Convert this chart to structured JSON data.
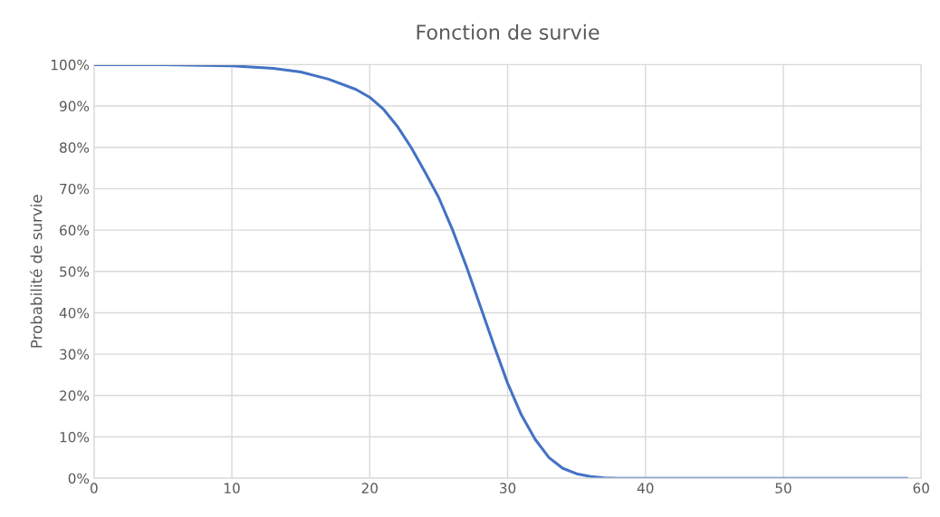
{
  "chart_data": {
    "type": "line",
    "title": "Fonction de survie",
    "ylabel": "Probabilité de survie",
    "x": [
      0,
      5,
      10,
      13,
      15,
      17,
      19,
      20,
      21,
      22,
      23,
      24,
      25,
      26,
      27,
      28,
      29,
      30,
      31,
      32,
      33,
      34,
      35,
      36,
      37,
      38,
      40,
      50,
      59
    ],
    "series": [
      {
        "color": "#4472c4",
        "values": [
          100,
          100,
          99.7,
          99.1,
          98.2,
          96.5,
          94,
          92.1,
          89.2,
          85.1,
          80,
          74.1,
          67.9,
          60.1,
          51.3,
          41.8,
          32.2,
          23,
          15.3,
          9.4,
          5,
          2.4,
          1.1,
          0.4,
          0.1,
          0,
          0,
          0,
          0
        ]
      }
    ],
    "xlim": [
      0,
      60
    ],
    "xticks": [
      0,
      10,
      20,
      30,
      40,
      50,
      60
    ],
    "ylim": [
      0,
      100
    ],
    "yticks": [
      {
        "value": 0,
        "label": "0%"
      },
      {
        "value": 10,
        "label": "10%"
      },
      {
        "value": 20,
        "label": "20%"
      },
      {
        "value": 30,
        "label": "30%"
      },
      {
        "value": 40,
        "label": "40%"
      },
      {
        "value": 50,
        "label": "50%"
      },
      {
        "value": 60,
        "label": "60%"
      },
      {
        "value": 70,
        "label": "70%"
      },
      {
        "value": 80,
        "label": "80%"
      },
      {
        "value": 90,
        "label": "90%"
      },
      {
        "value": 100,
        "label": "100%"
      }
    ],
    "grid": true,
    "legend": false,
    "marker": "none",
    "line_style": "solid"
  }
}
